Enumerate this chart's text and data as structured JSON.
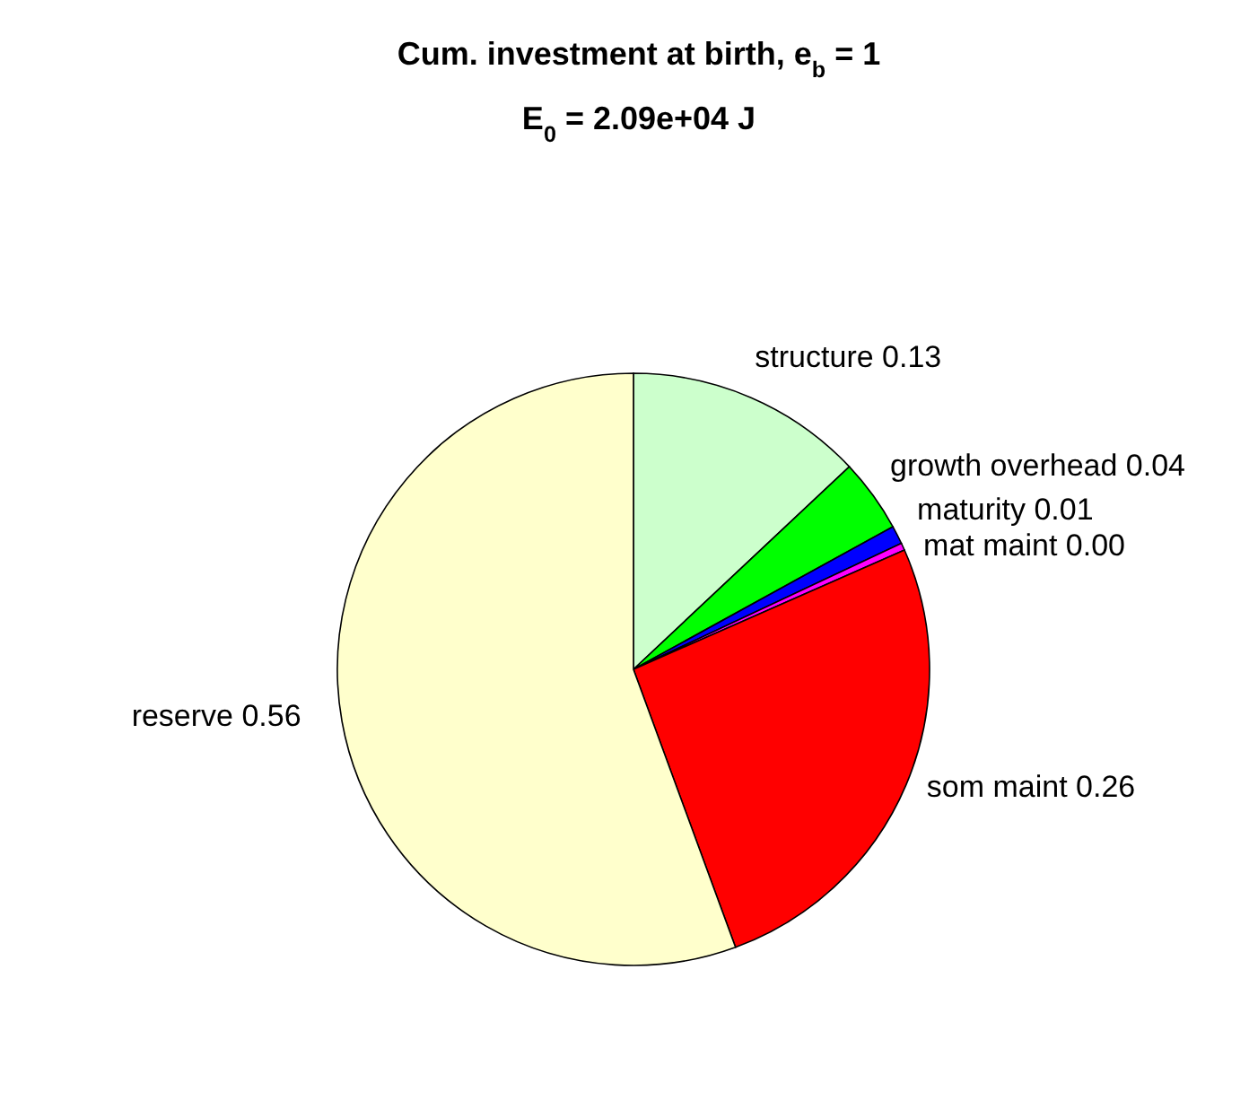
{
  "chart_data": {
    "type": "pie",
    "title": "Cum. investment at birth, e$_{b}$ = 1",
    "subtitle": "E$_{0}$ = 2.09e+04 J",
    "categories": [
      "structure",
      "growth overhead",
      "maturity",
      "mat maint",
      "som maint",
      "reserve"
    ],
    "values": [
      0.13,
      0.04,
      0.01,
      0.004,
      0.26,
      0.556
    ],
    "value_labels": [
      "0.13",
      "0.04",
      "0.01",
      "0.00",
      "0.26",
      "0.56"
    ],
    "colors": [
      "#ccffcc",
      "#00ff00",
      "#0000ff",
      "#ff00ff",
      "#ff0000",
      "#ffffcc"
    ]
  }
}
